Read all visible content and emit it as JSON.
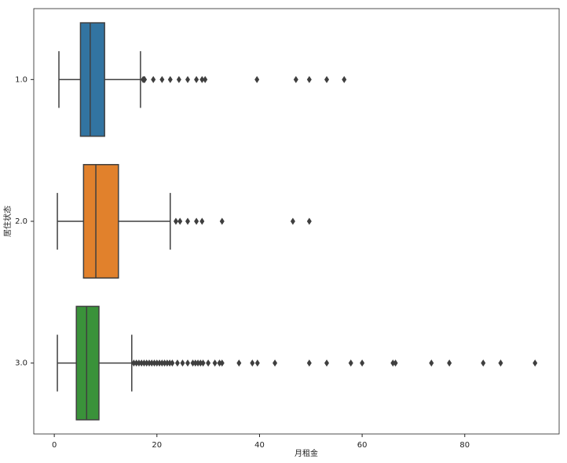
{
  "chart_data": {
    "type": "boxplot",
    "orientation": "horizontal",
    "xlabel": "月租金",
    "ylabel": "居住状态",
    "xlim": [
      -4,
      98.4
    ],
    "xticks": [
      0,
      20,
      40,
      60,
      80
    ],
    "boxes": [
      {
        "name": "1.0",
        "color": "#3274a1",
        "whislo": 0.9,
        "q1": 5.1,
        "med": 7.0,
        "q3": 9.8,
        "whishi": 16.8,
        "fliers": [
          17.3,
          17.5,
          17.6,
          19.3,
          21,
          22.6,
          24.3,
          26,
          27.7,
          28.8,
          29.4,
          39.5,
          47.1,
          49.7,
          53.1,
          56.5
        ]
      },
      {
        "name": "2.0",
        "color": "#e1812c",
        "whislo": 0.6,
        "q1": 5.7,
        "med": 8.1,
        "q3": 12.5,
        "whishi": 22.6,
        "fliers": [
          23.7,
          24.5,
          26,
          27.7,
          28.8,
          32.7,
          46.5,
          49.7
        ]
      },
      {
        "name": "3.0",
        "color": "#3a923a",
        "whislo": 0.6,
        "q1": 4.3,
        "med": 6.3,
        "q3": 8.7,
        "whishi": 15.1,
        "fliers": [
          15.5,
          16,
          16.5,
          17,
          17.5,
          18,
          18.5,
          19,
          19.5,
          20,
          20.5,
          21,
          21.5,
          22,
          22.5,
          23,
          24,
          25,
          26,
          27,
          27.5,
          28,
          28.5,
          29,
          30,
          31.3,
          32.2,
          32.7,
          36,
          38.6,
          39.6,
          43,
          49.7,
          53.1,
          57.8,
          60,
          66,
          66.5,
          73.5,
          77,
          83.6,
          87,
          93.7
        ]
      }
    ]
  }
}
